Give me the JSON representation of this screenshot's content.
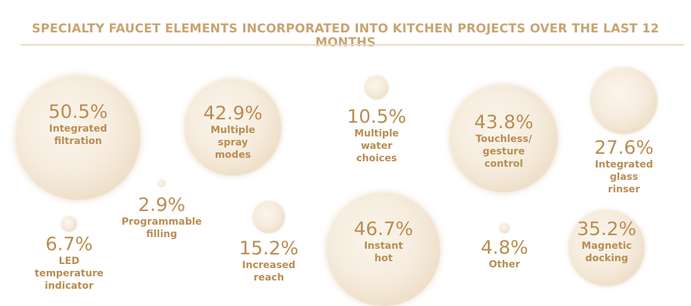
{
  "chart_data": {
    "type": "bubble",
    "title": "SPECIALTY FAUCET ELEMENTS INCORPORATED INTO KITCHEN PROJECTS OVER THE LAST 12 MONTHS",
    "colors": {
      "accent": "#b98d52",
      "title": "#c8a472",
      "bubble_center": "#fbf5ec",
      "bubble_edge": "#e6d3b6"
    },
    "series": [
      {
        "label": "Integrated\nfiltration",
        "value": 50.5,
        "display": "50.5%"
      },
      {
        "label": "Multiple spray\nmodes",
        "value": 42.9,
        "display": "42.9%"
      },
      {
        "label": "Multiple water\nchoices",
        "value": 10.5,
        "display": "10.5%"
      },
      {
        "label": "Touchless/\ngesture\ncontrol",
        "value": 43.8,
        "display": "43.8%"
      },
      {
        "label": "Integrated glass\nrinser",
        "value": 27.6,
        "display": "27.6%"
      },
      {
        "label": "Programmable\nfilling",
        "value": 2.9,
        "display": "2.9%"
      },
      {
        "label": "LED temperature\nindicator",
        "value": 6.7,
        "display": "6.7%"
      },
      {
        "label": "Increased\nreach",
        "value": 15.2,
        "display": "15.2%"
      },
      {
        "label": "Instant hot",
        "value": 46.7,
        "display": "46.7%"
      },
      {
        "label": "Other",
        "value": 4.8,
        "display": "4.8%"
      },
      {
        "label": "Magnetic\ndocking",
        "value": 35.2,
        "display": "35.2%"
      }
    ]
  }
}
